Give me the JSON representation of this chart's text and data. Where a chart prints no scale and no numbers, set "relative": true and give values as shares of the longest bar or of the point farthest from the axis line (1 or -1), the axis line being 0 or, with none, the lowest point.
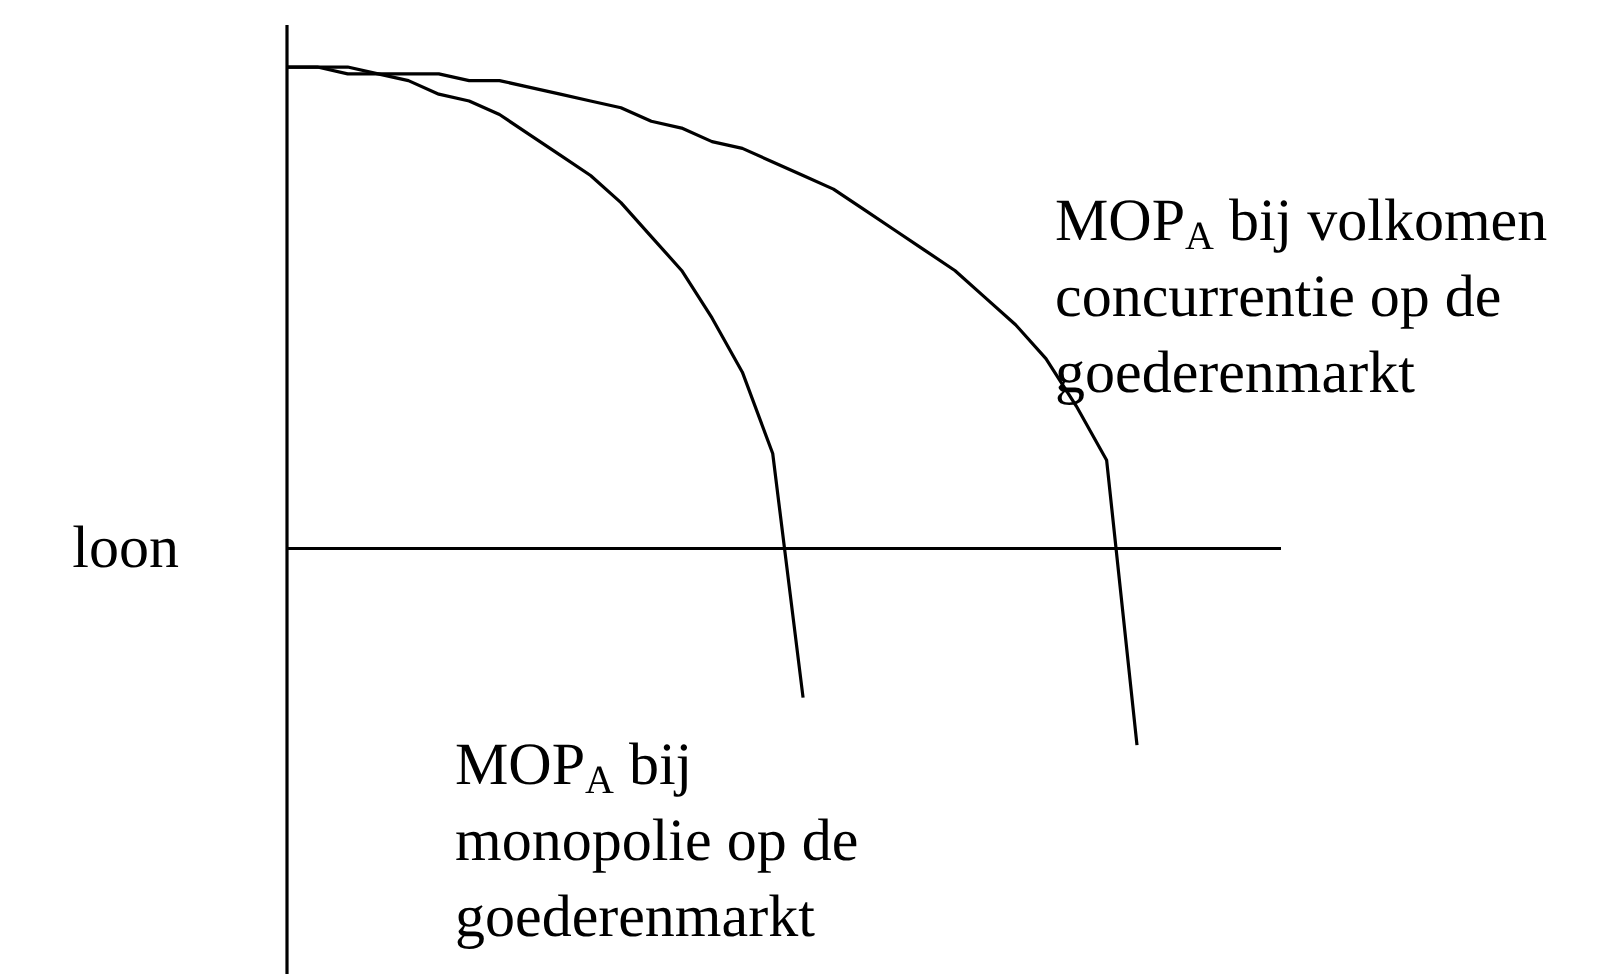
{
  "chart_data": {
    "type": "line",
    "relative": true,
    "tick_labels": false,
    "categories": [
      null,
      null,
      null,
      null,
      null,
      null,
      null,
      null,
      null,
      null,
      null,
      null,
      null,
      null,
      null,
      null,
      null,
      null,
      null,
      null,
      null,
      null,
      null,
      null,
      null,
      null,
      null,
      null,
      null
    ],
    "series": [
      {
        "color": "#000000",
        "values": [
          1,
          1,
          0.99,
          0.99,
          0.98,
          0.96,
          0.95,
          0.93,
          0.9,
          0.87,
          0.84,
          0.8,
          0.75,
          0.7,
          0.63,
          0.55,
          0.43,
          0.07,
          null,
          null,
          null,
          null,
          null,
          null,
          null,
          null,
          null,
          null,
          null
        ]
      },
      {
        "color": "#000000",
        "values": [
          1,
          1,
          1,
          0.99,
          0.99,
          0.99,
          0.98,
          0.98,
          0.97,
          0.96,
          0.95,
          0.94,
          0.92,
          0.91,
          0.89,
          0.88,
          0.86,
          0.84,
          0.82,
          0.79,
          0.76,
          0.73,
          0.7,
          0.66,
          0.62,
          0.57,
          0.5,
          0.42,
          0
        ]
      }
    ],
    "ref_lines": [
      {
        "axis": "y",
        "value": 0.29,
        "label": "loon",
        "color": "#000000"
      }
    ],
    "annotations": [
      "MOP$_{A}$ bij volkomen\nconcurrentie op de\ngoederenmarkt",
      "MOP$_{A}$ bij\nmonopolie op de\ngoederenmarkt"
    ]
  }
}
